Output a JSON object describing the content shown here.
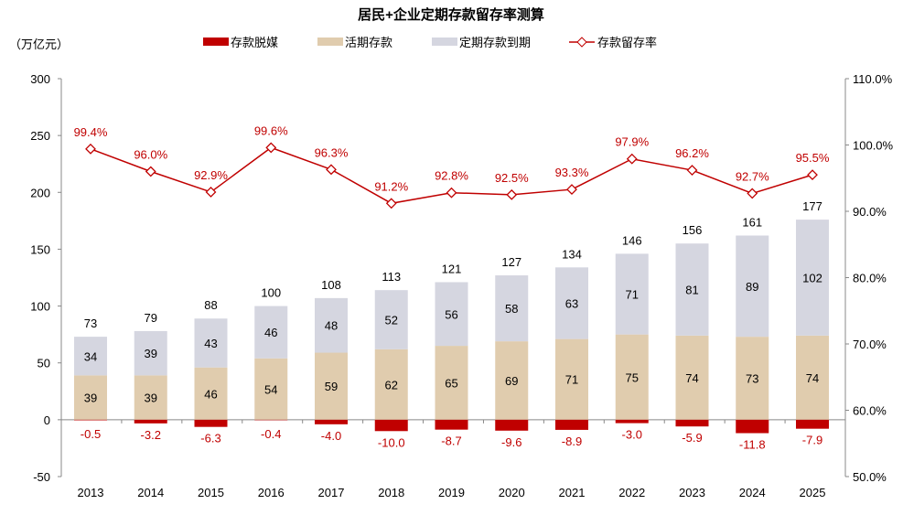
{
  "chart_data": {
    "type": "bar",
    "title": "居民+企业定期存款留存率测算",
    "ylabel": "（万亿元）",
    "categories": [
      "2013",
      "2014",
      "2015",
      "2016",
      "2017",
      "2018",
      "2019",
      "2020",
      "2021",
      "2022",
      "2023",
      "2024",
      "2025"
    ],
    "ylim": [
      -50,
      300
    ],
    "yticks": [
      -50,
      0,
      50,
      100,
      150,
      200,
      250,
      300
    ],
    "y2lim": [
      50,
      110
    ],
    "y2ticks": [
      "50.0%",
      "60.0%",
      "70.0%",
      "80.0%",
      "90.0%",
      "100.0%",
      "110.0%"
    ],
    "legend_position": "top",
    "series": [
      {
        "name": "存款脱媒",
        "kind": "bar",
        "color": "#C00000",
        "values": [
          -0.5,
          -3.2,
          -6.3,
          -0.4,
          -4.0,
          -10.0,
          -8.7,
          -9.6,
          -8.9,
          -3.0,
          -5.9,
          -11.8,
          -7.9
        ]
      },
      {
        "name": "活期存款",
        "kind": "stacked-bar",
        "color": "#E0CCAE",
        "values": [
          39,
          39,
          46,
          54,
          59,
          62,
          65,
          69,
          71,
          75,
          74,
          73,
          74
        ]
      },
      {
        "name": "定期存款到期",
        "kind": "stacked-bar",
        "color": "#D5D6E0",
        "values": [
          34,
          39,
          43,
          46,
          48,
          52,
          56,
          58,
          63,
          71,
          81,
          89,
          102
        ]
      },
      {
        "name": "存款留存率",
        "kind": "line",
        "axis": "right",
        "unit": "%",
        "color": "#C00000",
        "values": [
          99.4,
          96.0,
          92.9,
          99.6,
          96.3,
          91.2,
          92.8,
          92.5,
          93.3,
          97.9,
          96.2,
          92.7,
          95.5
        ]
      }
    ],
    "totals": [
      73,
      79,
      88,
      100,
      108,
      113,
      121,
      127,
      134,
      146,
      156,
      161,
      177
    ],
    "grid": false
  }
}
